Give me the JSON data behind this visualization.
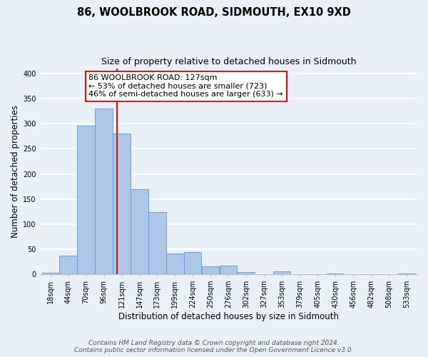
{
  "title": "86, WOOLBROOK ROAD, SIDMOUTH, EX10 9XD",
  "subtitle": "Size of property relative to detached houses in Sidmouth",
  "xlabel": "Distribution of detached houses by size in Sidmouth",
  "ylabel": "Number of detached properties",
  "bin_labels": [
    "18sqm",
    "44sqm",
    "70sqm",
    "96sqm",
    "121sqm",
    "147sqm",
    "173sqm",
    "199sqm",
    "224sqm",
    "250sqm",
    "276sqm",
    "302sqm",
    "327sqm",
    "353sqm",
    "379sqm",
    "405sqm",
    "430sqm",
    "456sqm",
    "482sqm",
    "508sqm",
    "533sqm"
  ],
  "bar_heights": [
    3,
    37,
    296,
    330,
    280,
    170,
    124,
    42,
    45,
    16,
    17,
    5,
    1,
    6,
    1,
    0,
    2,
    0,
    0,
    0,
    2
  ],
  "bar_color": "#aec6e8",
  "bar_edge_color": "#5b9bd5",
  "annotation_text_line1": "86 WOOLBROOK ROAD: 127sqm",
  "annotation_text_line2": "← 53% of detached houses are smaller (723)",
  "annotation_text_line3": "46% of semi-detached houses are larger (633) →",
  "ylim": [
    0,
    410
  ],
  "yticks": [
    0,
    50,
    100,
    150,
    200,
    250,
    300,
    350,
    400
  ],
  "footnote_line1": "Contains HM Land Registry data © Crown copyright and database right 2024.",
  "footnote_line2": "Contains public sector information licensed under the Open Government Licence v3.0.",
  "bg_color": "#eaf0f8",
  "plot_bg_color": "#eaf0f8",
  "grid_color": "#ffffff",
  "title_fontsize": 10.5,
  "subtitle_fontsize": 9,
  "axis_label_fontsize": 8.5,
  "tick_fontsize": 7,
  "annotation_fontsize": 8,
  "footnote_fontsize": 6.5
}
